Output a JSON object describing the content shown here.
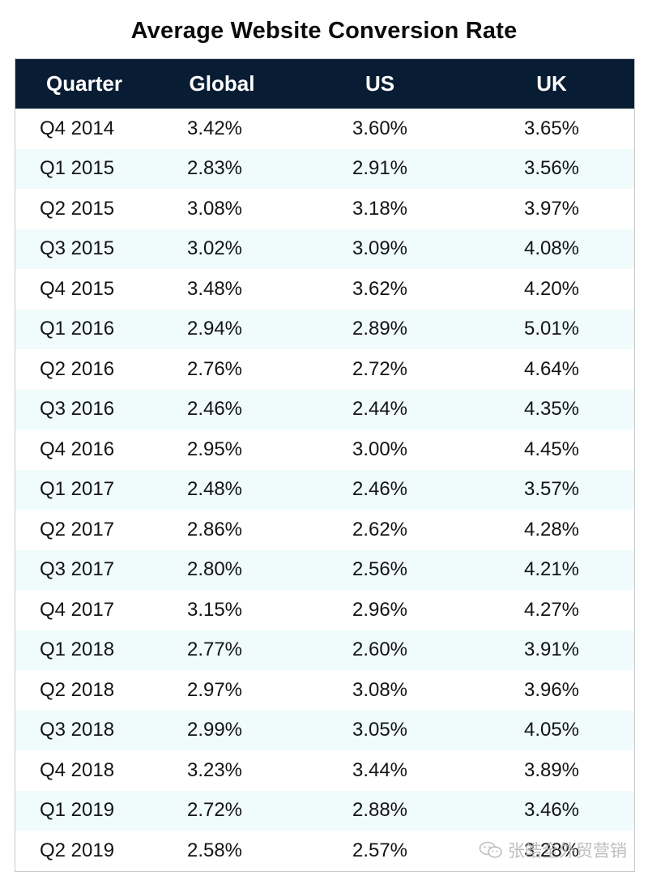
{
  "title": "Average Website Conversion Rate",
  "chart_data": {
    "type": "table",
    "title": "Average Website Conversion Rate",
    "columns": [
      "Quarter",
      "Global",
      "US",
      "UK"
    ],
    "rows": [
      [
        "Q4 2014",
        "3.42%",
        "3.60%",
        "3.65%"
      ],
      [
        "Q1 2015",
        "2.83%",
        "2.91%",
        "3.56%"
      ],
      [
        "Q2 2015",
        "3.08%",
        "3.18%",
        "3.97%"
      ],
      [
        "Q3 2015",
        "3.02%",
        "3.09%",
        "4.08%"
      ],
      [
        "Q4 2015",
        "3.48%",
        "3.62%",
        "4.20%"
      ],
      [
        "Q1 2016",
        "2.94%",
        "2.89%",
        "5.01%"
      ],
      [
        "Q2 2016",
        "2.76%",
        "2.72%",
        "4.64%"
      ],
      [
        "Q3 2016",
        "2.46%",
        "2.44%",
        "4.35%"
      ],
      [
        "Q4 2016",
        "2.95%",
        "3.00%",
        "4.45%"
      ],
      [
        "Q1 2017",
        "2.48%",
        "2.46%",
        "3.57%"
      ],
      [
        "Q2 2017",
        "2.86%",
        "2.62%",
        "4.28%"
      ],
      [
        "Q3 2017",
        "2.80%",
        "2.56%",
        "4.21%"
      ],
      [
        "Q4 2017",
        "3.15%",
        "2.96%",
        "4.27%"
      ],
      [
        "Q1 2018",
        "2.77%",
        "2.60%",
        "3.91%"
      ],
      [
        "Q2 2018",
        "2.97%",
        "3.08%",
        "3.96%"
      ],
      [
        "Q3 2018",
        "2.99%",
        "3.05%",
        "4.05%"
      ],
      [
        "Q4 2018",
        "3.23%",
        "3.44%",
        "3.89%"
      ],
      [
        "Q1 2019",
        "2.72%",
        "2.88%",
        "3.46%"
      ],
      [
        "Q2 2019",
        "2.58%",
        "2.57%",
        "3.28%"
      ]
    ]
  },
  "colors": {
    "header_bg": "#081c33",
    "header_text": "#ffffff",
    "stripe": "#f0fbfb"
  },
  "watermark": {
    "icon": "wechat-icon",
    "text": "张皓全外贸营销"
  }
}
